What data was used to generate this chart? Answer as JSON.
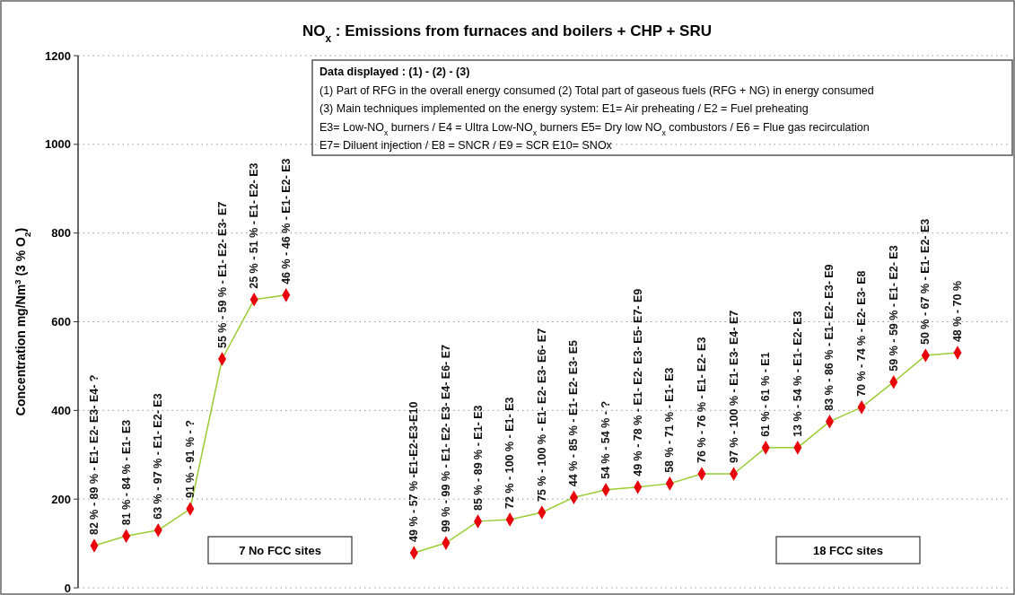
{
  "chart_data": {
    "type": "line",
    "title": "NO$_{x}$ :    Emissions from furnaces and boilers + CHP + SRU",
    "ylabel": "Concentration mg/Nm$^{3}$ (3 % O$_{2}$)",
    "categories": [
      "82 % - 89 % - E1- E2- E3- E4- ?",
      "81 % - 84 % - E1- E3",
      "63 % - 97 % - E1- E2- E3",
      "91 % - 91 % - ?",
      "55 % - 59 % - E1- E2- E3- E7",
      "25 % - 51 % - E1- E2- E3",
      "46 % - 46 % - E1- E2- E3",
      null,
      null,
      null,
      "49 % - 57 % -E1-E2-E3-E10",
      "99 % - 99 % - E1- E2- E3- E4- E6- E7",
      "85 % - 89 % - E1- E3",
      "72 % - 100 % - E1- E3",
      "75 % - 100 % - E1- E2- E3- E6- E7",
      "44 % - 85 % - E1- E2- E3- E5",
      "54 % - 54 % - ?",
      "49 % - 78 % - E1- E2- E3- E5- E7- E9",
      "58 % - 71 % - E1- E3",
      "76 % - 76 % - E1- E2- E3",
      "97 % - 100 % - E1- E3- E4- E7",
      "61 % - 61 % - E1",
      "13 % - 54 % - E1- E2- E3",
      "83 % - 86 % - E1- E2- E3- E9",
      "70 % - 74 % - E2- E3- E8",
      "59 % - 59 % - E1- E2- E3",
      "50 % - 67 % - E1- E2- E3",
      "48 % - 70 %"
    ],
    "series": [
      {
        "color": "#99cc33",
        "colors": [
          "#e8000b",
          "#e8000b",
          "#e8000b",
          "#e8000b",
          "#e8000b",
          "#e8000b",
          "#e8000b",
          "#e8000b",
          "#e8000b",
          "#e8000b",
          "#e8000b",
          "#e8000b",
          "#e8000b",
          "#e8000b",
          "#e8000b",
          "#e8000b",
          "#e8000b",
          "#e8000b",
          "#e8000b",
          "#e8000b",
          "#e8000b",
          "#e8000b",
          "#e8000b",
          "#e8000b",
          "#e8000b",
          "#e8000b",
          "#e8000b",
          "#e8000b"
        ],
        "values": [
          95,
          117,
          130,
          178,
          516,
          650,
          660,
          null,
          null,
          null,
          79,
          101,
          150,
          154,
          170,
          204,
          221,
          227,
          235,
          257,
          257,
          316,
          316,
          375,
          407,
          464,
          524,
          530
        ]
      }
    ],
    "ylim": [
      0,
      1200
    ],
    "yticks": [
      0,
      200,
      400,
      600,
      800,
      1000,
      1200
    ],
    "grid": "y",
    "marker": "diamond",
    "line_style": "solid",
    "annotations": [
      "Data displayed   : (1) - (2) - (3)",
      "(1) Part of RFG in the overall energy consumed (2) Total part of gaseous fuels (RFG + NG) in energy consumed",
      "(3) Main techniques implemented on the energy system: E1= Air preheating / E2 = Fuel preheating",
      "E3= Low-NO$_{x}$ burners / E4 = Ultra Low-NO$_{x}$ burners  E5= Dry low NO$_{x}$ combustors / E6 = Flue gas recirculation",
      "E7= Diluent injection / E8 = SNCR / E9 = SCR   E10= SNOx",
      "7 No FCC sites",
      "18 FCC sites"
    ]
  }
}
